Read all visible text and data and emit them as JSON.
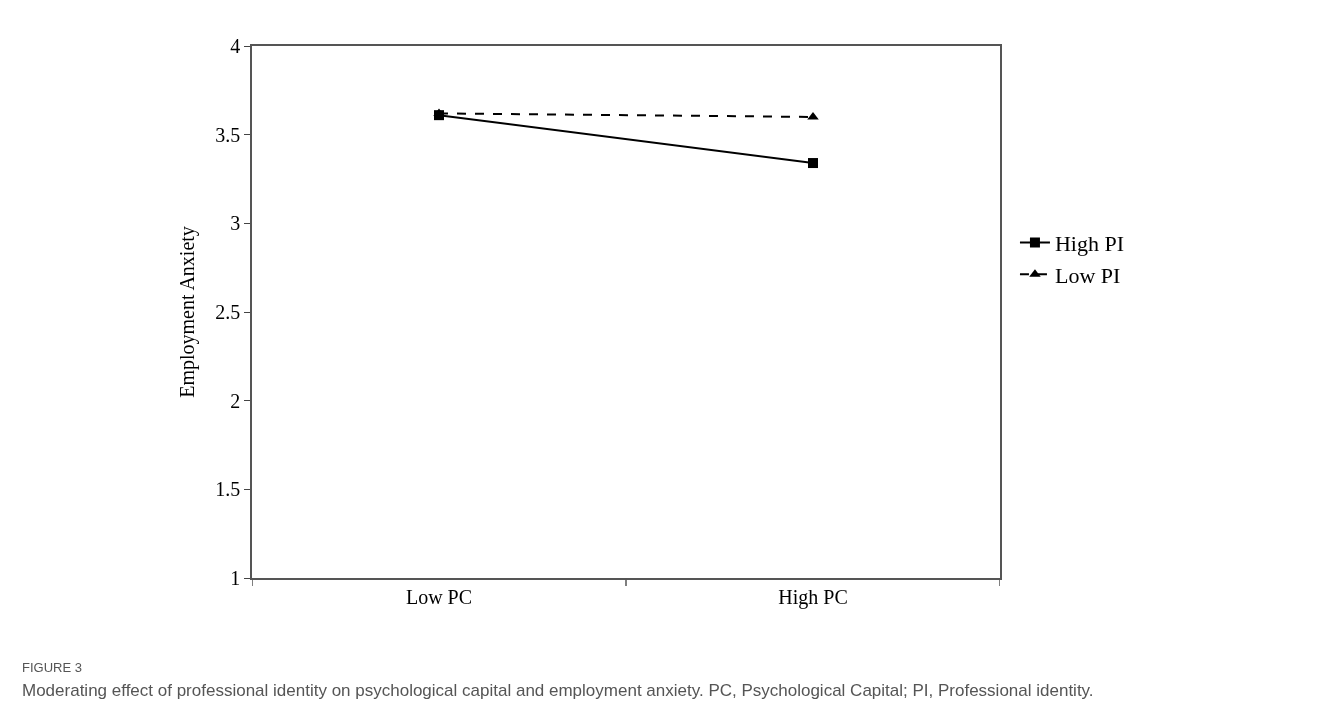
{
  "chart_data": {
    "type": "line",
    "ylabel": "Employment Anxiety",
    "categories": [
      "Low PC",
      "High PC"
    ],
    "series": [
      {
        "name": "High PI",
        "color": "#000000",
        "values": [
          3.61,
          3.34
        ],
        "marker": "square",
        "line_style": "solid"
      },
      {
        "name": "Low PI",
        "color": "#000000",
        "values": [
          3.62,
          3.6
        ],
        "marker": "triangle",
        "line_style": "dashed"
      }
    ],
    "ylim": [
      1,
      4
    ],
    "yticks": [
      1,
      1.5,
      2,
      2.5,
      3,
      3.5,
      4
    ],
    "legend": "right",
    "annotations": [
      "FIGURE 3",
      "Moderating effect of professional identity on psychological capital and employment anxiety. PC, Psychological Capital; PI, Professional identity."
    ]
  }
}
